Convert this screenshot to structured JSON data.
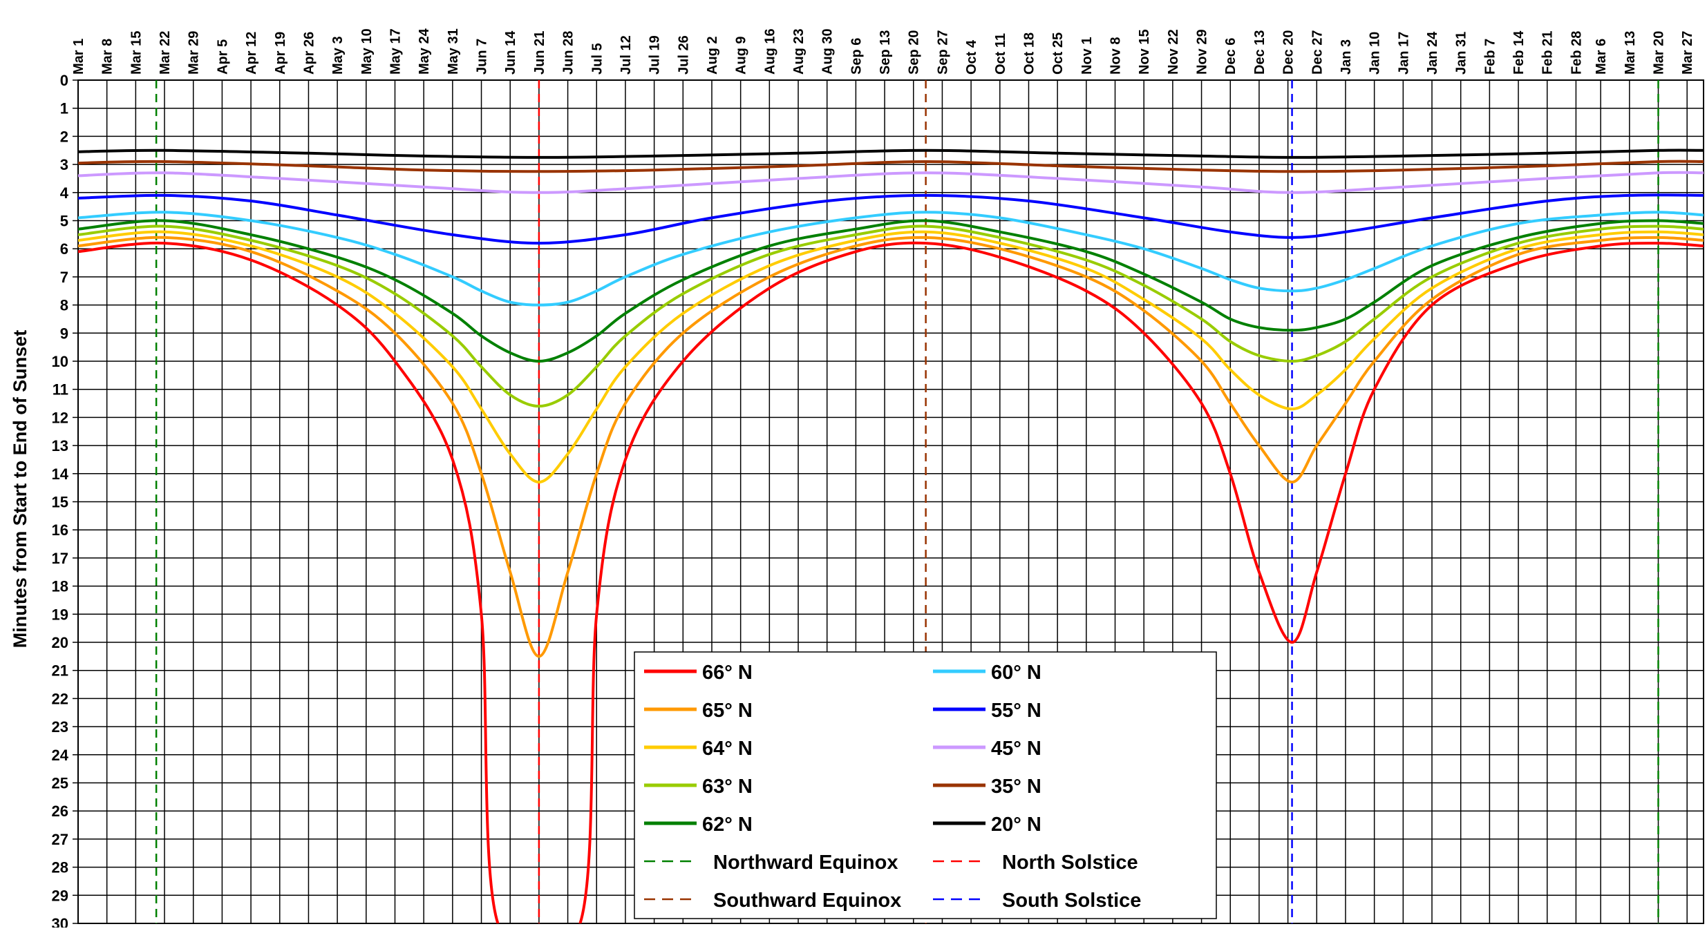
{
  "chart_data": {
    "type": "line",
    "title": "",
    "xlabel": "",
    "ylabel": "Minutes from Start to End of Sunset",
    "y_reversed": true,
    "ylim": [
      0,
      30
    ],
    "y_ticks": [
      0,
      1,
      2,
      3,
      4,
      5,
      6,
      7,
      8,
      9,
      10,
      11,
      12,
      13,
      14,
      15,
      16,
      17,
      18,
      19,
      20,
      21,
      22,
      23,
      24,
      25,
      26,
      27,
      28,
      29,
      30
    ],
    "x_tick_labels": [
      "Mar 1",
      "Mar 8",
      "Mar 15",
      "Mar 22",
      "Mar 29",
      "Apr 5",
      "Apr 12",
      "Apr 19",
      "Apr 26",
      "May 3",
      "May 10",
      "May 17",
      "May 24",
      "May 31",
      "Jun 7",
      "Jun 14",
      "Jun 21",
      "Jun 28",
      "Jul 5",
      "Jul 12",
      "Jul 19",
      "Jul 26",
      "Aug 2",
      "Aug 9",
      "Aug 16",
      "Aug 23",
      "Aug 30",
      "Sep 6",
      "Sep 13",
      "Sep 20",
      "Sep 27",
      "Oct 4",
      "Oct 11",
      "Oct 18",
      "Oct 25",
      "Nov 1",
      "Nov 8",
      "Nov 15",
      "Nov 22",
      "Nov 29",
      "Dec 6",
      "Dec 13",
      "Dec 20",
      "Dec 27",
      "Jan 3",
      "Jan 10",
      "Jan 17",
      "Jan 24",
      "Jan 31",
      "Feb 7",
      "Feb 14",
      "Feb 21",
      "Feb 28",
      "Mar 6",
      "Mar 13",
      "Mar 20",
      "Mar 27"
    ],
    "x_range": [
      "Mar 1",
      "Mar 31"
    ],
    "grid": true,
    "legend_placement": "bottom-center",
    "series": [
      {
        "name": "66° N",
        "color": "#ff0000",
        "x": [
          "Mar 1",
          "Mar 22",
          "Apr 12",
          "May 3",
          "May 17",
          "May 31",
          "Jun 7",
          "Jun 11",
          "Jul 1",
          "Jul 5",
          "Jul 12",
          "Jul 26",
          "Aug 16",
          "Sep 6",
          "Sep 23",
          "Oct 11",
          "Nov 1",
          "Nov 15",
          "Nov 29",
          "Dec 6",
          "Dec 13",
          "Dec 21",
          "Dec 27",
          "Jan 3",
          "Jan 10",
          "Jan 24",
          "Feb 14",
          "Mar 6",
          "Mar 20",
          "Mar 31"
        ],
        "values": [
          6.1,
          5.8,
          6.4,
          8.0,
          10.0,
          13.5,
          19.0,
          30.0,
          30.0,
          19.0,
          13.5,
          10.0,
          7.4,
          6.1,
          5.8,
          6.3,
          7.5,
          9.0,
          11.5,
          14.0,
          17.5,
          20.0,
          17.5,
          14.0,
          11.0,
          8.0,
          6.5,
          5.9,
          5.8,
          5.9
        ]
      },
      {
        "name": "65° N",
        "color": "#ff9900",
        "x": [
          "Mar 1",
          "Mar 22",
          "Apr 12",
          "May 3",
          "May 17",
          "May 31",
          "Jun 7",
          "Jun 14",
          "Jun 21",
          "Jun 28",
          "Jul 5",
          "Jul 12",
          "Jul 26",
          "Aug 16",
          "Sep 6",
          "Sep 23",
          "Oct 11",
          "Nov 1",
          "Nov 15",
          "Nov 29",
          "Dec 6",
          "Dec 13",
          "Dec 21",
          "Dec 27",
          "Jan 3",
          "Jan 10",
          "Jan 24",
          "Feb 14",
          "Mar 6",
          "Mar 20",
          "Mar 31"
        ],
        "values": [
          5.9,
          5.6,
          6.1,
          7.5,
          9.0,
          11.5,
          14.0,
          17.5,
          20.5,
          17.5,
          14.0,
          11.5,
          9.0,
          7.0,
          5.9,
          5.6,
          6.0,
          7.0,
          8.2,
          10.0,
          11.5,
          13.0,
          14.3,
          13.0,
          11.5,
          10.0,
          7.8,
          6.2,
          5.7,
          5.6,
          5.7
        ]
      },
      {
        "name": "64° N",
        "color": "#ffcc00",
        "x": [
          "Mar 1",
          "Mar 22",
          "Apr 12",
          "May 3",
          "May 17",
          "May 31",
          "Jun 7",
          "Jun 14",
          "Jun 21",
          "Jun 28",
          "Jul 5",
          "Jul 12",
          "Jul 26",
          "Aug 16",
          "Sep 6",
          "Sep 23",
          "Oct 11",
          "Nov 1",
          "Nov 15",
          "Nov 29",
          "Dec 6",
          "Dec 13",
          "Dec 21",
          "Dec 27",
          "Jan 3",
          "Jan 10",
          "Jan 24",
          "Feb 14",
          "Mar 6",
          "Mar 20",
          "Mar 31"
        ],
        "values": [
          5.7,
          5.4,
          5.9,
          7.0,
          8.3,
          10.2,
          11.7,
          13.3,
          14.3,
          13.3,
          11.7,
          10.2,
          8.3,
          6.6,
          5.7,
          5.4,
          5.8,
          6.7,
          7.8,
          9.2,
          10.3,
          11.2,
          11.7,
          11.2,
          10.3,
          9.2,
          7.4,
          6.0,
          5.5,
          5.4,
          5.5
        ]
      },
      {
        "name": "63° N",
        "color": "#99cc00",
        "x": [
          "Mar 1",
          "Mar 22",
          "Apr 12",
          "May 3",
          "May 17",
          "May 31",
          "Jun 7",
          "Jun 14",
          "Jun 21",
          "Jun 28",
          "Jul 5",
          "Jul 12",
          "Jul 26",
          "Aug 16",
          "Sep 6",
          "Sep 23",
          "Oct 11",
          "Nov 1",
          "Nov 15",
          "Nov 29",
          "Dec 6",
          "Dec 13",
          "Dec 21",
          "Dec 27",
          "Jan 3",
          "Jan 10",
          "Jan 24",
          "Feb 14",
          "Mar 6",
          "Mar 20",
          "Mar 31"
        ],
        "values": [
          5.5,
          5.2,
          5.7,
          6.6,
          7.6,
          9.1,
          10.2,
          11.2,
          11.6,
          11.2,
          10.2,
          9.1,
          7.6,
          6.2,
          5.5,
          5.2,
          5.6,
          6.4,
          7.3,
          8.5,
          9.3,
          9.8,
          10.0,
          9.8,
          9.3,
          8.5,
          7.0,
          5.8,
          5.3,
          5.2,
          5.3
        ]
      },
      {
        "name": "62° N",
        "color": "#008000",
        "x": [
          "Mar 1",
          "Mar 22",
          "Apr 12",
          "May 3",
          "May 17",
          "May 31",
          "Jun 7",
          "Jun 14",
          "Jun 21",
          "Jun 28",
          "Jul 5",
          "Jul 12",
          "Jul 26",
          "Aug 16",
          "Sep 6",
          "Sep 23",
          "Oct 11",
          "Nov 1",
          "Nov 15",
          "Nov 29",
          "Dec 6",
          "Dec 13",
          "Dec 21",
          "Dec 27",
          "Jan 3",
          "Jan 10",
          "Jan 24",
          "Feb 14",
          "Mar 6",
          "Mar 20",
          "Mar 31"
        ],
        "values": [
          5.3,
          5.0,
          5.5,
          6.3,
          7.1,
          8.3,
          9.1,
          9.7,
          10.0,
          9.7,
          9.1,
          8.3,
          7.1,
          5.9,
          5.3,
          5.0,
          5.4,
          6.1,
          6.9,
          7.9,
          8.5,
          8.8,
          8.9,
          8.8,
          8.5,
          7.9,
          6.6,
          5.6,
          5.1,
          5.0,
          5.1
        ]
      },
      {
        "name": "60° N",
        "color": "#33ccff",
        "x": [
          "Mar 1",
          "Mar 22",
          "Apr 12",
          "May 3",
          "May 17",
          "May 31",
          "Jun 7",
          "Jun 14",
          "Jun 21",
          "Jun 28",
          "Jul 5",
          "Jul 12",
          "Jul 26",
          "Aug 16",
          "Sep 6",
          "Sep 23",
          "Oct 11",
          "Nov 1",
          "Nov 15",
          "Nov 29",
          "Dec 6",
          "Dec 13",
          "Dec 21",
          "Dec 27",
          "Jan 3",
          "Jan 10",
          "Jan 24",
          "Feb 14",
          "Mar 6",
          "Mar 20",
          "Mar 31"
        ],
        "values": [
          4.9,
          4.7,
          5.0,
          5.6,
          6.2,
          7.0,
          7.5,
          7.9,
          8.0,
          7.9,
          7.5,
          7.0,
          6.2,
          5.4,
          4.9,
          4.7,
          4.9,
          5.5,
          6.0,
          6.7,
          7.1,
          7.4,
          7.5,
          7.4,
          7.1,
          6.7,
          5.9,
          5.1,
          4.8,
          4.7,
          4.8
        ]
      },
      {
        "name": "55° N",
        "color": "#0000ff",
        "x": [
          "Mar 1",
          "Mar 22",
          "Apr 12",
          "May 3",
          "May 31",
          "Jun 21",
          "Jul 12",
          "Aug 2",
          "Aug 30",
          "Sep 23",
          "Oct 18",
          "Nov 15",
          "Dec 6",
          "Dec 21",
          "Jan 3",
          "Jan 24",
          "Feb 21",
          "Mar 13",
          "Mar 31"
        ],
        "values": [
          4.2,
          4.1,
          4.3,
          4.8,
          5.5,
          5.8,
          5.5,
          4.9,
          4.3,
          4.1,
          4.3,
          4.9,
          5.4,
          5.6,
          5.4,
          4.9,
          4.3,
          4.1,
          4.1
        ]
      },
      {
        "name": "45° N",
        "color": "#cc99ff",
        "x": [
          "Mar 1",
          "Mar 22",
          "Apr 19",
          "May 24",
          "Jun 21",
          "Jul 19",
          "Aug 23",
          "Sep 23",
          "Oct 25",
          "Nov 29",
          "Dec 21",
          "Jan 17",
          "Feb 21",
          "Mar 20",
          "Mar 31"
        ],
        "values": [
          3.4,
          3.3,
          3.5,
          3.8,
          4.0,
          3.8,
          3.5,
          3.3,
          3.5,
          3.8,
          4.0,
          3.8,
          3.5,
          3.3,
          3.3
        ]
      },
      {
        "name": "35° N",
        "color": "#993300",
        "x": [
          "Mar 1",
          "Mar 22",
          "Apr 26",
          "May 24",
          "Jun 21",
          "Jul 19",
          "Aug 23",
          "Sep 23",
          "Oct 25",
          "Nov 29",
          "Dec 21",
          "Jan 17",
          "Feb 21",
          "Mar 20",
          "Mar 31"
        ],
        "values": [
          2.95,
          2.9,
          3.05,
          3.2,
          3.25,
          3.2,
          3.05,
          2.9,
          3.05,
          3.2,
          3.25,
          3.2,
          3.05,
          2.9,
          2.9
        ]
      },
      {
        "name": "20° N",
        "color": "#000000",
        "x": [
          "Mar 1",
          "Mar 22",
          "Apr 26",
          "May 24",
          "Jun 21",
          "Jul 19",
          "Aug 23",
          "Sep 23",
          "Oct 25",
          "Nov 29",
          "Dec 21",
          "Jan 17",
          "Feb 21",
          "Mar 20",
          "Mar 31"
        ],
        "values": [
          2.55,
          2.5,
          2.6,
          2.7,
          2.75,
          2.7,
          2.6,
          2.5,
          2.6,
          2.7,
          2.75,
          2.7,
          2.6,
          2.5,
          2.5
        ]
      }
    ],
    "reference_lines": [
      {
        "name": "Northward Equinox",
        "color": "#008000",
        "x": [
          "Mar 20",
          "Mar 20"
        ]
      },
      {
        "name": "North Solstice",
        "color": "#ff0000",
        "x": [
          "Jun 21"
        ]
      },
      {
        "name": "Southward Equinox",
        "color": "#993300",
        "x": [
          "Sep 23"
        ]
      },
      {
        "name": "South Solstice",
        "color": "#0000ff",
        "x": [
          "Dec 21"
        ]
      }
    ]
  }
}
